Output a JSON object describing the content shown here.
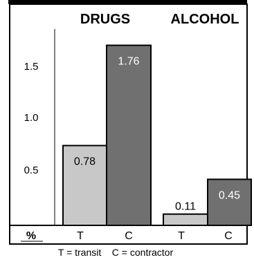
{
  "chart_data": {
    "type": "bar",
    "title": "",
    "groups": [
      "DRUGS",
      "ALCOHOL"
    ],
    "categories": [
      "T",
      "C",
      "T",
      "C"
    ],
    "category_groups": [
      0,
      0,
      1,
      1
    ],
    "values": [
      0.78,
      1.76,
      0.11,
      0.45
    ],
    "value_labels": [
      "0.78",
      "1.76",
      "0.11",
      "0.45"
    ],
    "bar_colors": [
      "#c8c8c8",
      "#707070",
      "#c8c8c8",
      "#707070"
    ],
    "value_label_colors": [
      "#000000",
      "#ffffff",
      "#000000",
      "#ffffff"
    ],
    "yticks": [
      0.5,
      1.0,
      1.5
    ],
    "ytick_labels": [
      "0.5",
      "1.0",
      "1.5"
    ],
    "ylim": [
      0,
      1.9
    ],
    "yaxis_unit_label": "%",
    "footnote": "T = transit    C = contractor",
    "grid": false
  }
}
